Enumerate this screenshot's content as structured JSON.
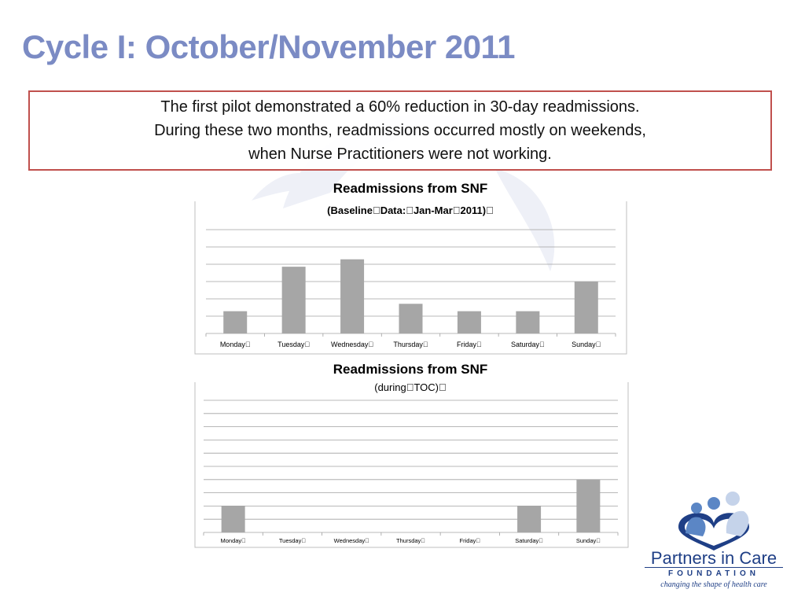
{
  "slide": {
    "title": "Cycle I: October/November 2011"
  },
  "callout": {
    "lines": [
      "The first pilot demonstrated a 60% reduction in 30-day readmissions.",
      "During these two months, readmissions occurred mostly on weekends,",
      "when Nurse Practitioners were not working."
    ]
  },
  "chart_data": [
    {
      "type": "bar",
      "title": "Readmissions from SNF",
      "subtitle": "(Baseline\u0000Data:\u0000Jan-Mar\u00002011)\u0000",
      "categories": [
        "Monday\u0000",
        "Tuesday\u0000",
        "Wednesday\u0000",
        "Thursday\u0000",
        "Friday\u0000",
        "Saturday\u0000",
        "Sunday\u0000"
      ],
      "values": [
        3,
        9,
        10,
        4,
        3,
        3,
        7
      ],
      "ylim": [
        0,
        14
      ],
      "grid": true,
      "bar_color": "#a6a6a6"
    },
    {
      "type": "bar",
      "title": "Readmissions from SNF",
      "subtitle": "(during\u0000TOC)\u0000",
      "categories": [
        "Monday\u0000",
        "Tuesday\u0000",
        "Wednesday\u0000",
        "Thursday\u0000",
        "Friday\u0000",
        "Saturday\u0000",
        "Sunday\u0000"
      ],
      "values": [
        1,
        0,
        0,
        0,
        0,
        1,
        2
      ],
      "ylim": [
        0,
        5
      ],
      "grid": true,
      "bar_color": "#a6a6a6"
    }
  ],
  "logo": {
    "name": "Partners in Care",
    "foundation": "FOUNDATION",
    "tagline": "changing the shape of health care",
    "primary_color": "#1f3f86",
    "figure_color": "#5b86c5"
  }
}
